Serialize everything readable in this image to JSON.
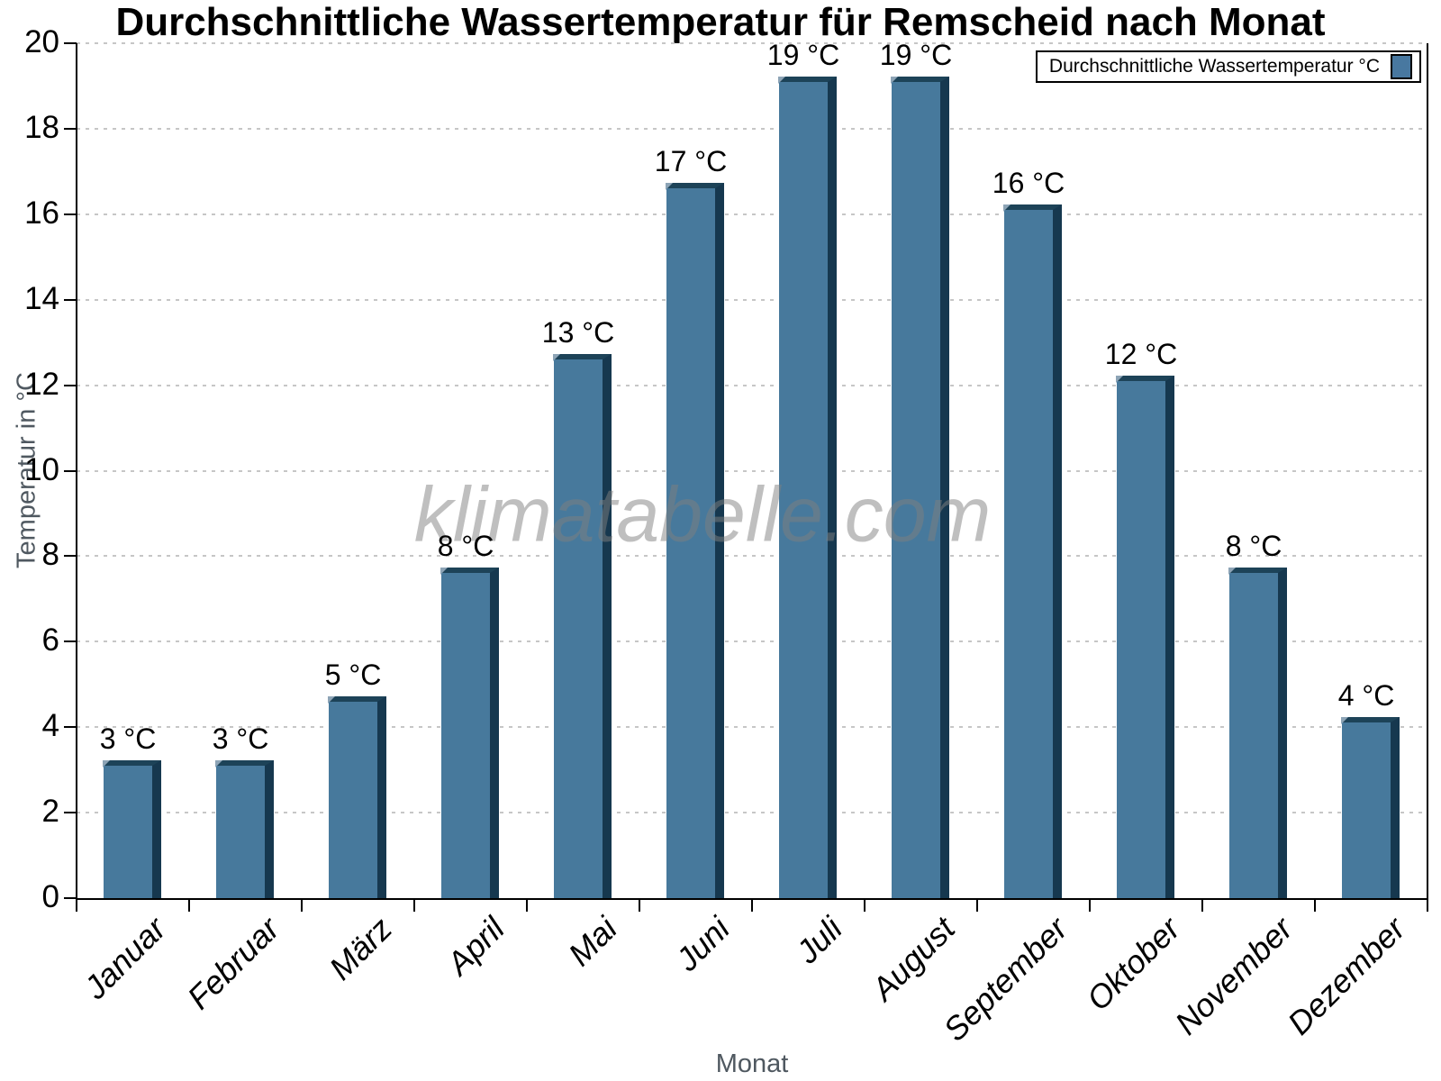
{
  "title": "Durchschnittliche Wassertemperatur für Remscheid nach Monat",
  "legend": {
    "label": "Durchschnittliche Wassertemperatur °C"
  },
  "watermark": "klimatabelle.com",
  "axes": {
    "ylabel": "Temperatur in °C",
    "xlabel": "Monat"
  },
  "chart_data": {
    "type": "bar",
    "title": "Durchschnittliche Wassertemperatur für Remscheid nach Monat",
    "categories": [
      "Januar",
      "Februar",
      "März",
      "April",
      "Mai",
      "Juni",
      "Juli",
      "August",
      "September",
      "Oktober",
      "November",
      "Dezember"
    ],
    "values": [
      3,
      3,
      5,
      8,
      13,
      17,
      19,
      19,
      16,
      12,
      8,
      4
    ],
    "bar_labels": [
      "3 °C",
      "3 °C",
      "5 °C",
      "8 °C",
      "13 °C",
      "17 °C",
      "19 °C",
      "19 °C",
      "16 °C",
      "12 °C",
      "8 °C",
      "4 °C"
    ],
    "plotted_heights": [
      3.1,
      3.1,
      4.6,
      7.6,
      12.6,
      16.6,
      19.1,
      19.1,
      16.1,
      12.1,
      7.6,
      4.1
    ],
    "unit": "°C",
    "xlabel": "Monat",
    "ylabel": "Temperatur in °C",
    "ylim": [
      0,
      20
    ],
    "ytick_step": 2,
    "yticks": [
      0,
      2,
      4,
      6,
      8,
      10,
      12,
      14,
      16,
      18,
      20
    ],
    "grid": "horizontal-dotted",
    "legend_entries": [
      "Durchschnittliche Wassertemperatur °C"
    ],
    "legend_position": "top-right",
    "colors": {
      "bar_face": "#47799c",
      "bar_edge_right": "#16384f",
      "bar_edge_top": "#1d4358",
      "bar_bevel": "#8da4b6",
      "grid": "#c6c6c6",
      "axis": "#000000",
      "axis_title": "#4f5860",
      "watermark_gray": "#808080"
    },
    "category_slugs": [
      "januar",
      "februar",
      "maerz",
      "april",
      "mai",
      "juni",
      "juli",
      "august",
      "september",
      "oktober",
      "november",
      "dezember"
    ]
  }
}
